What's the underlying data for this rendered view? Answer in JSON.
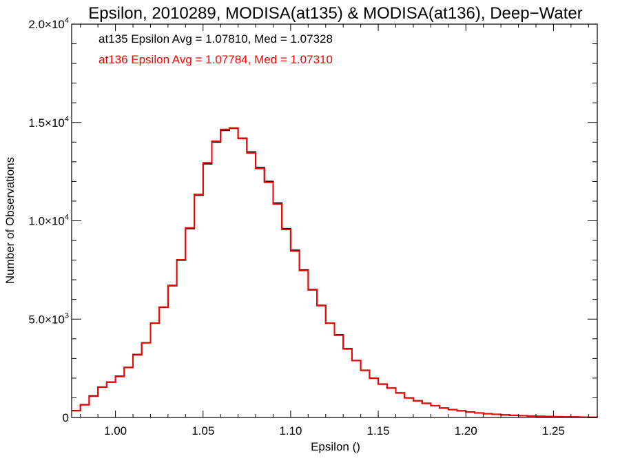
{
  "chart_data": {
    "type": "line",
    "title": "Epsilon, 2010289, MODISA(at135) & MODISA(at136), Deep−Water",
    "xlabel": "Epsilon ()",
    "ylabel": "Number of Observations",
    "xlim": [
      0.975,
      1.275
    ],
    "ylim": [
      0,
      20000
    ],
    "xticks": [
      {
        "value": 1.0,
        "label": "1.00"
      },
      {
        "value": 1.05,
        "label": "1.05"
      },
      {
        "value": 1.1,
        "label": "1.10"
      },
      {
        "value": 1.15,
        "label": "1.15"
      },
      {
        "value": 1.2,
        "label": "1.20"
      },
      {
        "value": 1.25,
        "label": "1.25"
      }
    ],
    "yticks": [
      {
        "value": 0,
        "mantissa": "0",
        "exponent": ""
      },
      {
        "value": 5000,
        "mantissa": "5.0×10",
        "exponent": "3"
      },
      {
        "value": 10000,
        "mantissa": "1.0×10",
        "exponent": "4"
      },
      {
        "value": 15000,
        "mantissa": "1.5×10",
        "exponent": "4"
      },
      {
        "value": 20000,
        "mantissa": "2.0×10",
        "exponent": "4"
      }
    ],
    "annotations": [
      {
        "text": "at135 Epsilon Avg = 1.07810, Med = 1.07328",
        "color": "#000000"
      },
      {
        "text": "at136 Epsilon Avg = 1.07784, Med = 1.07310",
        "color": "#ff0000"
      }
    ],
    "x": [
      0.975,
      0.98,
      0.985,
      0.99,
      0.995,
      1.0,
      1.005,
      1.01,
      1.015,
      1.02,
      1.025,
      1.03,
      1.035,
      1.04,
      1.045,
      1.05,
      1.055,
      1.06,
      1.065,
      1.07,
      1.075,
      1.08,
      1.085,
      1.09,
      1.095,
      1.1,
      1.105,
      1.11,
      1.115,
      1.12,
      1.125,
      1.13,
      1.135,
      1.14,
      1.145,
      1.15,
      1.155,
      1.16,
      1.165,
      1.17,
      1.175,
      1.18,
      1.185,
      1.19,
      1.195,
      1.2,
      1.205,
      1.21,
      1.215,
      1.22,
      1.225,
      1.23,
      1.235,
      1.24,
      1.245,
      1.25,
      1.255,
      1.26,
      1.265,
      1.27,
      1.275
    ],
    "series": [
      {
        "color": "#000000",
        "values": [
          350,
          650,
          1100,
          1550,
          1800,
          2100,
          2550,
          3200,
          3800,
          4800,
          5600,
          6700,
          8000,
          9600,
          11300,
          12900,
          14000,
          14600,
          14700,
          14200,
          13500,
          12700,
          12000,
          10900,
          9600,
          8500,
          7500,
          6500,
          5700,
          4800,
          4200,
          3500,
          2900,
          2400,
          2000,
          1700,
          1500,
          1250,
          1000,
          850,
          720,
          600,
          480,
          400,
          340,
          280,
          230,
          190,
          160,
          130,
          110,
          90,
          75,
          62,
          50,
          40,
          32,
          25,
          18,
          12,
          8
        ]
      },
      {
        "color": "#ff0000",
        "values": [
          340,
          640,
          1080,
          1540,
          1790,
          2080,
          2540,
          3180,
          3790,
          4790,
          5610,
          6720,
          8020,
          9640,
          11340,
          12950,
          14050,
          14650,
          14720,
          14180,
          13450,
          12650,
          11950,
          10850,
          9560,
          8460,
          7470,
          6480,
          5680,
          4790,
          4180,
          3480,
          2890,
          2390,
          1990,
          1690,
          1490,
          1240,
          990,
          845,
          715,
          595,
          478,
          398,
          338,
          278,
          228,
          188,
          158,
          128,
          108,
          88,
          73,
          60,
          48,
          38,
          30,
          23,
          16,
          11,
          7
        ]
      }
    ],
    "grid": false
  }
}
